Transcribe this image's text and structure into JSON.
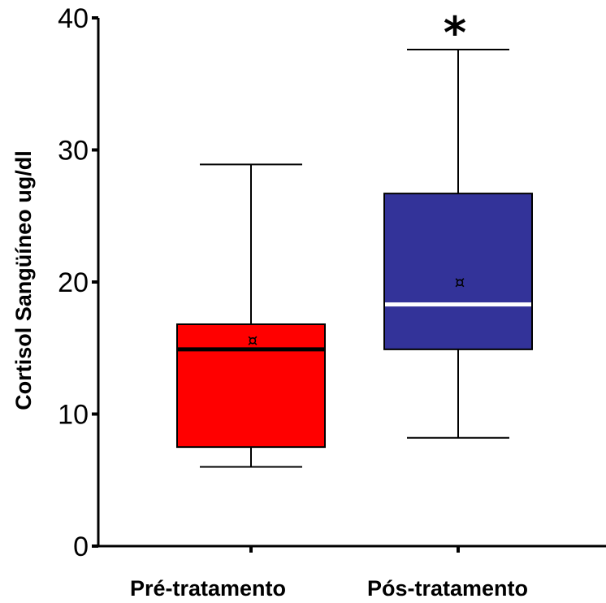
{
  "chart_data": {
    "type": "box",
    "title": "",
    "xlabel": "",
    "ylabel": "Cortisol Sangüíneo ug/dl",
    "ylim": [
      0,
      40
    ],
    "yticks": [
      0,
      10,
      20,
      30,
      40
    ],
    "grid": false,
    "legend": "none",
    "categories": [
      "Pré-tratamento",
      "Pós-tratamento"
    ],
    "boxes": [
      {
        "category": "Pré-tratamento",
        "min": 6.0,
        "q1": 7.5,
        "median": 14.9,
        "q3": 16.8,
        "max": 28.9,
        "mean": 15.6,
        "color": "#ff0000",
        "median_color": "#000000"
      },
      {
        "category": "Pós-tratamento",
        "min": 8.2,
        "q1": 14.9,
        "median": 18.3,
        "q3": 26.7,
        "max": 37.6,
        "mean": 20.0,
        "color": "#333399",
        "median_color": "#ffffff"
      }
    ],
    "annotations": [
      {
        "category": "Pós-tratamento",
        "text": "*"
      }
    ],
    "mean_marker": "¤"
  }
}
